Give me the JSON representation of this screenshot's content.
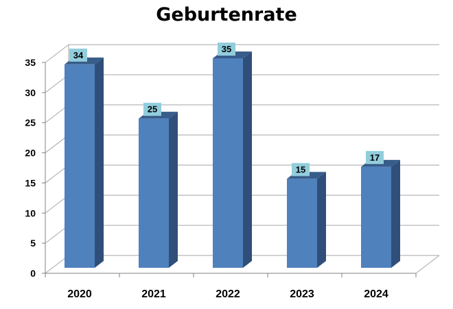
{
  "chart_data": {
    "type": "bar",
    "title": "Geburtenrate",
    "xlabel": "",
    "ylabel": "",
    "categories": [
      "2020",
      "2021",
      "2022",
      "2023",
      "2024"
    ],
    "values": [
      34,
      25,
      35,
      15,
      17
    ],
    "data_labels": [
      "34",
      "25",
      "35",
      "15",
      "17"
    ],
    "ylim": [
      0,
      35
    ],
    "yticks": [
      0,
      5,
      10,
      15,
      20,
      25,
      30,
      35
    ],
    "ytick_labels": [
      "0",
      "5",
      "10",
      "15",
      "20",
      "25",
      "30",
      "35"
    ],
    "grid": true,
    "legend": "none",
    "style": "3d-column",
    "colors": {
      "bar_front": "#4f81bd",
      "bar_side": "#2f4f7a",
      "bar_top": "#385d8a",
      "label_box": "#92cddc",
      "gridline": "#a6a6a6"
    }
  }
}
